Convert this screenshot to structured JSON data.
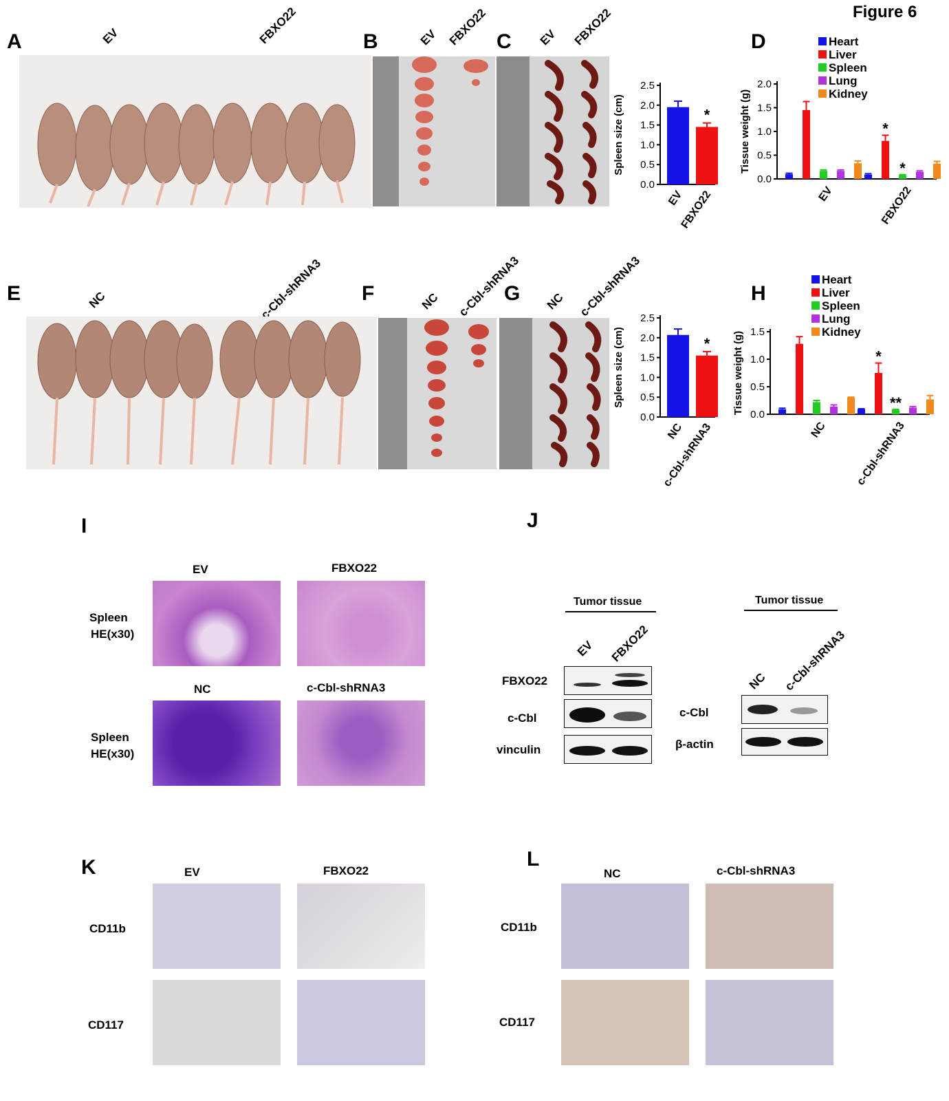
{
  "figure_title": "Figure 6",
  "panels": {
    "A": "A",
    "B": "B",
    "C": "C",
    "D": "D",
    "E": "E",
    "F": "F",
    "G": "G",
    "H": "H",
    "I": "I",
    "J": "J",
    "K": "K",
    "L": "L"
  },
  "groups": {
    "ev": "EV",
    "fbxo22": "FBXO22",
    "nc": "NC",
    "shrna": "c-Cbl-shRNA3"
  },
  "histology": {
    "row_label_1": "Spleen",
    "row_label_2": "HE(x30)",
    "row_label_3": "Spleen",
    "row_label_4": "HE(x30)"
  },
  "western": {
    "header": "Tumor tissue",
    "left_rows": [
      "FBXO22",
      "c-Cbl",
      "vinculin"
    ],
    "right_rows": [
      "c-Cbl",
      "β-actin"
    ]
  },
  "ihc": {
    "markers": [
      "CD11b",
      "CD117"
    ]
  },
  "colors": {
    "blue": "#1414e6",
    "red": "#ee1111",
    "green": "#22cc22",
    "purple": "#b133e0",
    "orange": "#f08a1c"
  },
  "chart_data": [
    {
      "type": "bar",
      "panel": "C",
      "categories": [
        "EV",
        "FBXO22"
      ],
      "values": [
        1.95,
        1.45
      ],
      "errors": [
        0.15,
        0.1
      ],
      "ylabel": "Spleen size (cm)",
      "ylim": [
        0,
        2.5
      ],
      "yticks": [
        "0.0",
        "0.5",
        "1.0",
        "1.5",
        "2.0",
        "2.5"
      ],
      "annotations": [
        "",
        "*"
      ]
    },
    {
      "type": "bar",
      "panel": "D",
      "categories": [
        "EV",
        "FBXO22"
      ],
      "ylabel": "Tissue weight (g)",
      "ylim": [
        0,
        2.0
      ],
      "yticks": [
        "0.0",
        "0.5",
        "1.0",
        "1.5",
        "2.0"
      ],
      "legend": "top",
      "series": [
        {
          "name": "Heart",
          "values": [
            0.1,
            0.09
          ],
          "errors": [
            0.02,
            0.02
          ]
        },
        {
          "name": "Liver",
          "values": [
            1.45,
            0.8
          ],
          "errors": [
            0.18,
            0.12
          ]
        },
        {
          "name": "Spleen",
          "values": [
            0.17,
            0.08
          ],
          "errors": [
            0.02,
            0.01
          ]
        },
        {
          "name": "Lung",
          "values": [
            0.17,
            0.15
          ],
          "errors": [
            0.02,
            0.02
          ]
        },
        {
          "name": "Kidney",
          "values": [
            0.33,
            0.32
          ],
          "errors": [
            0.05,
            0.05
          ]
        }
      ],
      "annotations": [
        {
          "series": "Liver",
          "category": "FBXO22",
          "text": "*"
        },
        {
          "series": "Spleen",
          "category": "FBXO22",
          "text": "*"
        }
      ]
    },
    {
      "type": "bar",
      "panel": "G",
      "categories": [
        "NC",
        "c-Cbl-shRNA3"
      ],
      "values": [
        2.07,
        1.55
      ],
      "errors": [
        0.15,
        0.1
      ],
      "ylabel": "Spleen size (cm)",
      "ylim": [
        0,
        2.5
      ],
      "yticks": [
        "0.0",
        "0.5",
        "1.0",
        "1.5",
        "2.0",
        "2.5"
      ],
      "annotations": [
        "",
        "*"
      ]
    },
    {
      "type": "bar",
      "panel": "H",
      "categories": [
        "NC",
        "c-Cbl-shRNA3"
      ],
      "ylabel": "Tissue weight (g)",
      "ylim": [
        0,
        1.5
      ],
      "yticks": [
        "0.0",
        "0.5",
        "1.0",
        "1.5"
      ],
      "legend": "top",
      "series": [
        {
          "name": "Heart",
          "values": [
            0.09,
            0.09
          ],
          "errors": [
            0.02,
            0.01
          ]
        },
        {
          "name": "Liver",
          "values": [
            1.28,
            0.75
          ],
          "errors": [
            0.13,
            0.18
          ]
        },
        {
          "name": "Spleen",
          "values": [
            0.22,
            0.08
          ],
          "errors": [
            0.03,
            0.01
          ]
        },
        {
          "name": "Lung",
          "values": [
            0.14,
            0.12
          ],
          "errors": [
            0.03,
            0.02
          ]
        },
        {
          "name": "Kidney",
          "values": [
            0.3,
            0.27
          ],
          "errors": [
            0.01,
            0.07
          ]
        }
      ],
      "annotations": [
        {
          "series": "Liver",
          "category": "c-Cbl-shRNA3",
          "text": "*"
        },
        {
          "series": "Spleen",
          "category": "c-Cbl-shRNA3",
          "text": "**"
        }
      ]
    }
  ]
}
